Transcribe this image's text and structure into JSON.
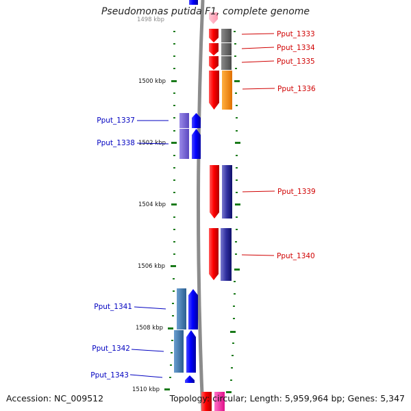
{
  "title": "Pseudomonas putida F1, complete genome",
  "accession": "Accession: NC_009512",
  "topology": "Topology: circular; Length: 5,959,964 bp; Genes: 5,347",
  "scale_labels": [
    "1498 kbp",
    "1500 kbp",
    "1502 kbp",
    "1504 kbp",
    "1506 kbp",
    "1508 kbp",
    "1510 kbp"
  ],
  "colors": {
    "backbone": "#8a8a8a",
    "scale_tick": "#1a7a1a",
    "forward_label": "#d00000",
    "reverse_label": "#0000c0",
    "red": "#ff0000",
    "blue": "#0000ff",
    "gray": "#6e6e6e",
    "orange": "#ff8800",
    "purple": "#7060d0",
    "navy": "#1a1a8a",
    "steel": "#3a78b0",
    "pink": "#ffb0c0",
    "magenta": "#ff30b0"
  },
  "genes": {
    "forward": [
      "Pput_1333",
      "Pput_1334",
      "Pput_1335",
      "Pput_1336",
      "Pput_1339",
      "Pput_1340"
    ],
    "reverse": [
      "Pput_1337",
      "Pput_1338",
      "Pput_1341",
      "Pput_1342",
      "Pput_1343"
    ]
  }
}
